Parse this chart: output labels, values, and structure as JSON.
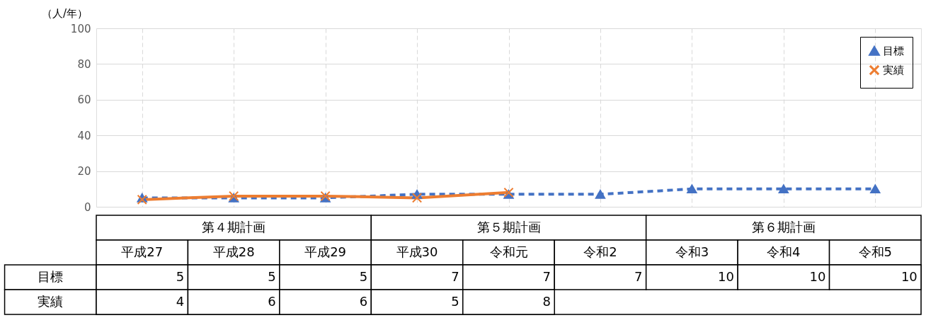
{
  "chart_data": {
    "type": "line",
    "ylabel": "（人/年）",
    "categories": [
      "平成27",
      "平成28",
      "平成29",
      "平成30",
      "令和元",
      "令和2",
      "令和3",
      "令和4",
      "令和5"
    ],
    "series": [
      {
        "name": "目標",
        "color": "#4472c4",
        "marker": "triangle",
        "line_style": "dashed",
        "values": [
          5,
          5,
          5,
          7,
          7,
          7,
          10,
          10,
          10
        ]
      },
      {
        "name": "実績",
        "color": "#ed7d31",
        "marker": "cross",
        "line_style": "solid",
        "values": [
          4,
          6,
          6,
          5,
          8,
          null,
          null,
          null,
          null
        ]
      }
    ],
    "ylim": [
      0,
      100
    ],
    "yticks": [
      0,
      20,
      40,
      60,
      80,
      100
    ],
    "grid": true,
    "legend": "top right",
    "data_labels": true,
    "annotations": [
      "第４期計画",
      "第５期計画",
      "第６期計画"
    ]
  }
}
